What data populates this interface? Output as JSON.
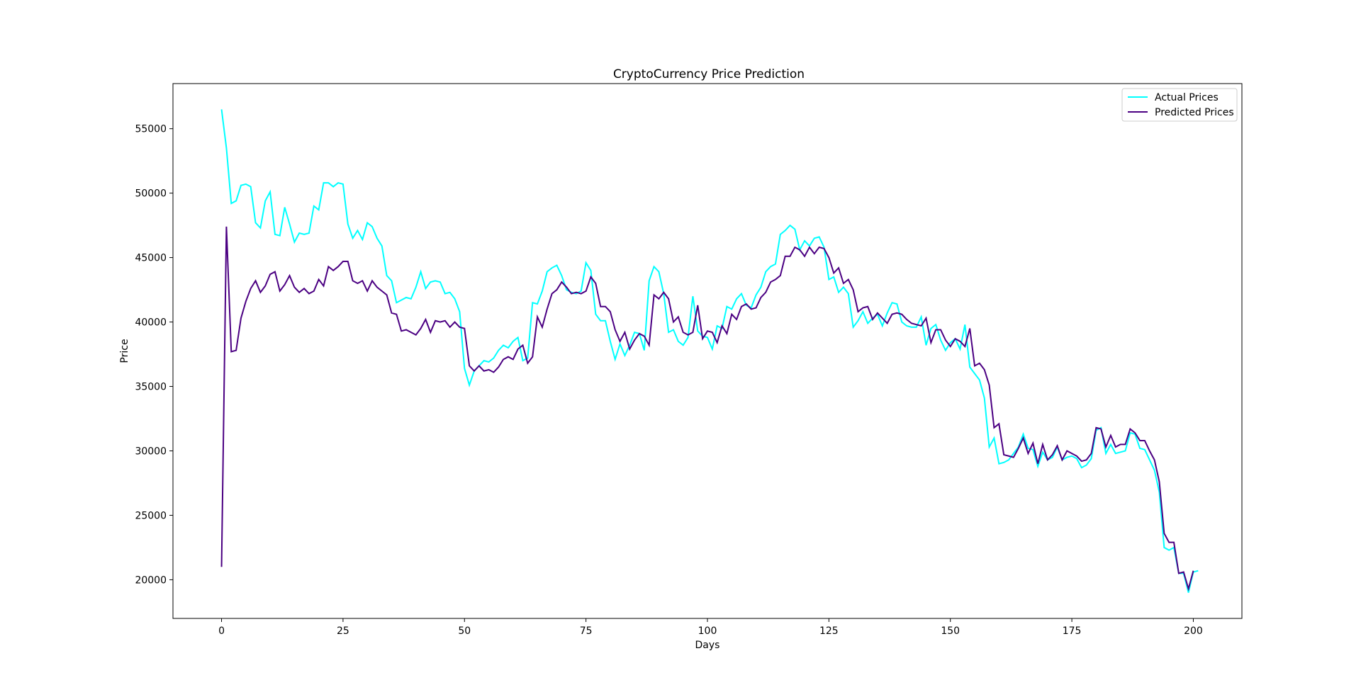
{
  "chart_data": {
    "type": "line",
    "title": "CryptoCurrency Price Prediction",
    "xlabel": "Days",
    "ylabel": "Price",
    "xlim": [
      -10,
      210
    ],
    "ylim": [
      17000,
      58500
    ],
    "xticks": [
      0,
      25,
      50,
      75,
      100,
      125,
      150,
      175,
      200
    ],
    "yticks": [
      20000,
      25000,
      30000,
      35000,
      40000,
      45000,
      50000,
      55000
    ],
    "grid": false,
    "legend_position": "top-right",
    "series": [
      {
        "name": "Actual Prices",
        "color": "#00ffff",
        "values": [
          56500,
          53500,
          49200,
          49400,
          50600,
          50700,
          50500,
          47700,
          47300,
          49400,
          50100,
          46800,
          46700,
          48900,
          47600,
          46200,
          46900,
          46800,
          46900,
          49000,
          48700,
          50800,
          50800,
          50500,
          50800,
          50700,
          47600,
          46500,
          47100,
          46400,
          47700,
          47400,
          46500,
          45900,
          43600,
          43200,
          41500,
          41700,
          41900,
          41800,
          42700,
          43900,
          42600,
          43100,
          43200,
          43100,
          42200,
          42300,
          41800,
          40800,
          36400,
          35100,
          36200,
          36600,
          37000,
          36900,
          37200,
          37800,
          38200,
          38000,
          38500,
          38800,
          37000,
          37200,
          41500,
          41400,
          42400,
          43900,
          44200,
          44400,
          43600,
          42500,
          42300,
          42200,
          42400,
          44600,
          44000,
          40600,
          40100,
          40100,
          38500,
          37100,
          38300,
          37400,
          38200,
          39200,
          39100,
          37800,
          43200,
          44300,
          43900,
          42200,
          39200,
          39400,
          38500,
          38200,
          38800,
          42000,
          39300,
          38900,
          38800,
          37900,
          39700,
          39500,
          41200,
          41000,
          41800,
          42200,
          41300,
          41100,
          42100,
          42700,
          43900,
          44300,
          44500,
          46800,
          47100,
          47500,
          47200,
          45600,
          46300,
          45900,
          46500,
          46600,
          45800,
          43300,
          43500,
          42300,
          42700,
          42200,
          39600,
          40100,
          40800,
          39900,
          40300,
          40600,
          39700,
          40700,
          41500,
          41400,
          40000,
          39700,
          39600,
          39600,
          40400,
          38200,
          39500,
          39800,
          38600,
          37800,
          38400,
          38700,
          37900,
          39800,
          36500,
          36000,
          35500,
          34100,
          30300,
          31000,
          29000,
          29100,
          29300,
          29800,
          30300,
          31300,
          30200,
          30100,
          28800,
          29900,
          29300,
          29500,
          30300,
          29300,
          29500,
          29600,
          29400,
          28700,
          28900,
          29400,
          31600,
          31800,
          29800,
          30500,
          29800,
          29900,
          30000,
          31400,
          31300,
          30200,
          30100,
          29300,
          28500,
          26800,
          22500,
          22300,
          22500,
          20500,
          20500,
          19000,
          20600,
          20700
        ]
      },
      {
        "name": "Predicted Prices",
        "color": "#4b0082",
        "values": [
          21000,
          47400,
          37700,
          37800,
          40300,
          41600,
          42600,
          43200,
          42300,
          42800,
          43700,
          43900,
          42400,
          42900,
          43600,
          42700,
          42300,
          42600,
          42200,
          42400,
          43300,
          42800,
          44300,
          44000,
          44300,
          44700,
          44700,
          43200,
          43000,
          43200,
          42400,
          43200,
          42700,
          42400,
          42100,
          40700,
          40600,
          39300,
          39400,
          39200,
          39000,
          39500,
          40200,
          39200,
          40100,
          40000,
          40100,
          39600,
          40000,
          39600,
          39500,
          36600,
          36200,
          36600,
          36200,
          36300,
          36100,
          36500,
          37100,
          37300,
          37100,
          37900,
          38200,
          36800,
          37300,
          40400,
          39600,
          41000,
          42200,
          42500,
          43100,
          42700,
          42200,
          42300,
          42200,
          42400,
          43500,
          43000,
          41200,
          41200,
          40800,
          39400,
          38500,
          39200,
          37900,
          38600,
          39100,
          38900,
          38200,
          42100,
          41800,
          42300,
          41800,
          40000,
          40400,
          39200,
          39000,
          39200,
          41300,
          38700,
          39300,
          39200,
          38400,
          39700,
          39100,
          40600,
          40200,
          41200,
          41400,
          41000,
          41100,
          41900,
          42300,
          43100,
          43300,
          43600,
          45100,
          45100,
          45800,
          45600,
          45100,
          45800,
          45300,
          45800,
          45700,
          45000,
          43800,
          44200,
          43000,
          43300,
          42500,
          40800,
          41100,
          41200,
          40200,
          40700,
          40300,
          39900,
          40600,
          40700,
          40600,
          40200,
          39900,
          39800,
          39700,
          40300,
          38400,
          39400,
          39400,
          38600,
          38100,
          38700,
          38500,
          38100,
          39500,
          36600,
          36800,
          36300,
          35100,
          31800,
          32100,
          29700,
          29600,
          29500,
          30200,
          31000,
          29800,
          30600,
          29000,
          30500,
          29300,
          29700,
          30400,
          29300,
          30000,
          29800,
          29600,
          29200,
          29300,
          29800,
          31800,
          31700,
          30300,
          31200,
          30300,
          30500,
          30500,
          31700,
          31400,
          30800,
          30800,
          30000,
          29300,
          27600,
          23600,
          22900,
          22900,
          20500,
          20600,
          19300,
          20700
        ]
      }
    ]
  }
}
